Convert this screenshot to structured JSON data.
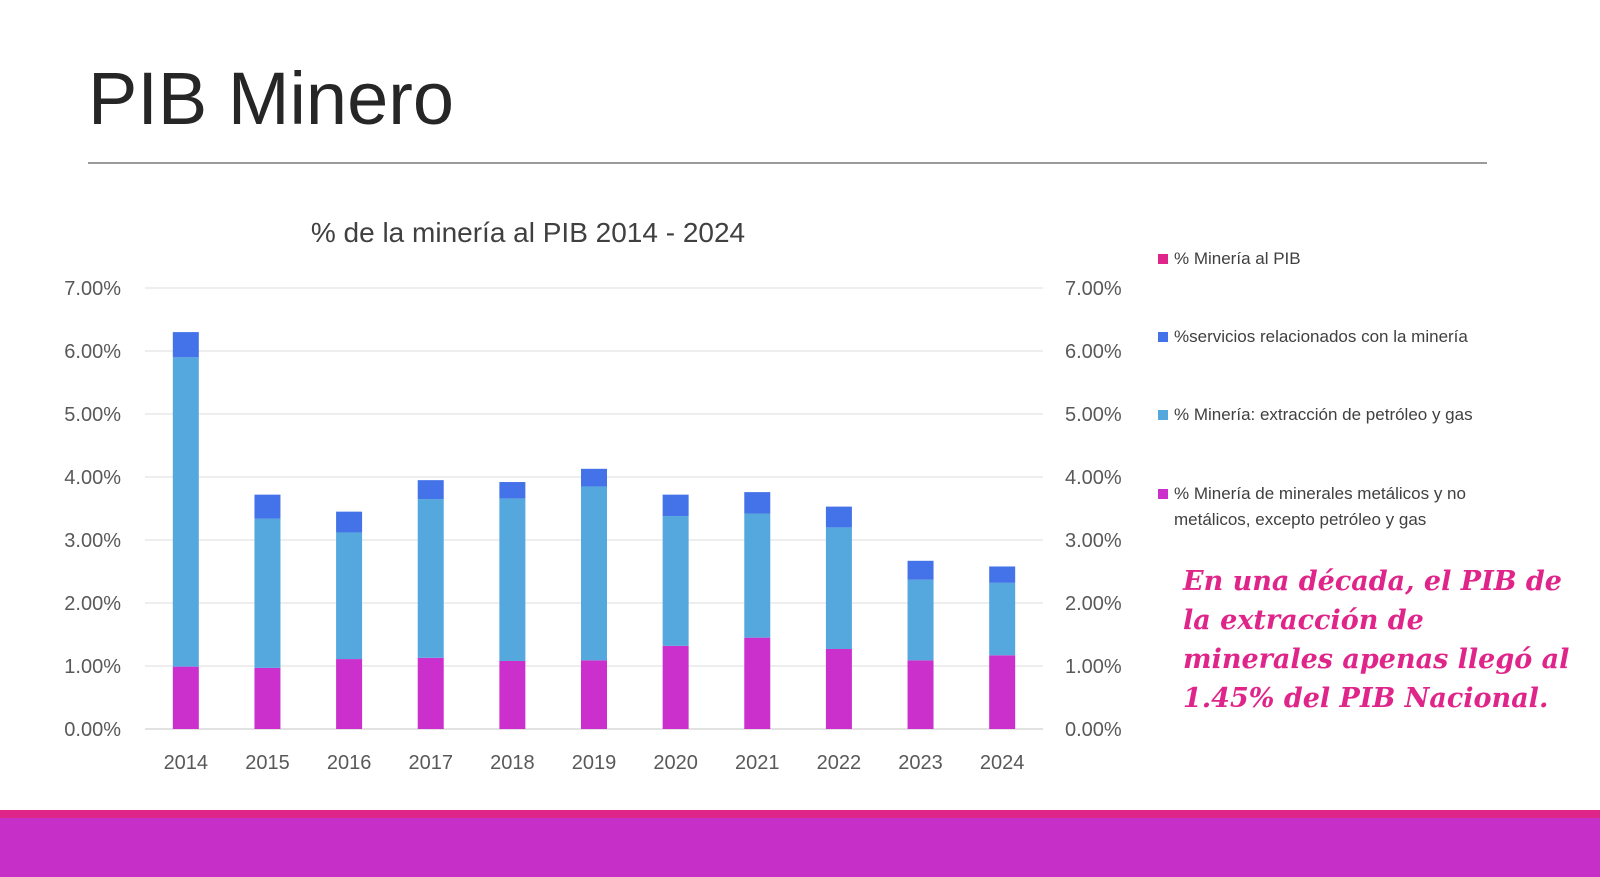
{
  "slide": {
    "title": "PIB Minero",
    "callout": "En una década, el PIB de la extracción de minerales apenas llegó al 1.45% del PIB Nacional."
  },
  "colors": {
    "metallic": "#cc30cc",
    "oil_gas": "#55a8dd",
    "services": "#4472e8",
    "total": "#e0258a",
    "callout": "#e0258a",
    "footer_band": "#c630c8",
    "footer_stripe": "#e0258a",
    "grid": "#e4e4e4"
  },
  "chart_data": {
    "type": "bar",
    "stacked": true,
    "title": "% de la minería al PIB 2014 - 2024",
    "categories": [
      "2014",
      "2015",
      "2016",
      "2017",
      "2018",
      "2019",
      "2020",
      "2021",
      "2022",
      "2023",
      "2024"
    ],
    "ylim": [
      0,
      0.07
    ],
    "y_ticks": [
      "0.00%",
      "1.00%",
      "2.00%",
      "3.00%",
      "4.00%",
      "5.00%",
      "6.00%",
      "7.00%"
    ],
    "secondary_y_ticks": [
      "0.00%",
      "1.00%",
      "2.00%",
      "3.00%",
      "4.00%",
      "5.00%",
      "6.00%",
      "7.00%"
    ],
    "grid": true,
    "legend_position": "right",
    "legend": [
      {
        "name": "% Minería al PIB",
        "color": "#e0258a"
      },
      {
        "name": "%servicios relacionados con la minería",
        "color": "#4472e8"
      },
      {
        "name": "% Minería: extracción de petróleo y gas",
        "color": "#55a8dd"
      },
      {
        "name": "% Minería de minerales metálicos y no metálicos, excepto petróleo y gas",
        "color": "#cc30cc"
      }
    ],
    "series": [
      {
        "name": "% Minería de minerales metálicos y no metálicos, excepto petróleo y gas",
        "color": "#cc30cc",
        "values": [
          0.0099,
          0.0097,
          0.0111,
          0.0113,
          0.0108,
          0.0109,
          0.0132,
          0.0145,
          0.0127,
          0.0109,
          0.0117
        ]
      },
      {
        "name": "% Minería: extracción de petróleo y gas",
        "color": "#55a8dd",
        "values": [
          0.0491,
          0.0237,
          0.0201,
          0.0252,
          0.0258,
          0.0276,
          0.0206,
          0.0197,
          0.0193,
          0.0128,
          0.0115
        ]
      },
      {
        "name": "%servicios relacionados con la minería",
        "color": "#4472e8",
        "values": [
          0.004,
          0.0038,
          0.0033,
          0.003,
          0.0026,
          0.0028,
          0.0034,
          0.0034,
          0.0033,
          0.003,
          0.0026
        ]
      }
    ]
  }
}
